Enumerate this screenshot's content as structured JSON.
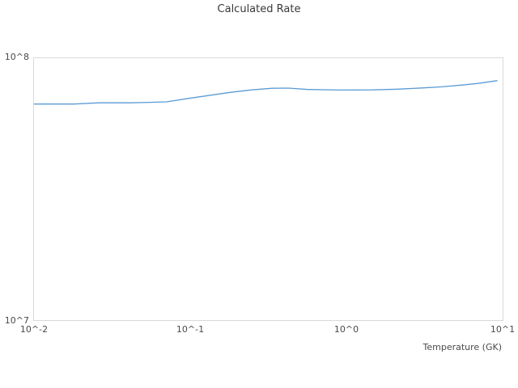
{
  "title": "Calculated Rate",
  "chart_data": {
    "type": "line",
    "title": "Calculated Rate",
    "xlabel": "Temperature (GK)",
    "ylabel": "",
    "x_scale": "log",
    "y_scale": "log",
    "xlim": [
      0.01,
      10
    ],
    "ylim": [
      10000000.0,
      100000000.0
    ],
    "x_tick_labels": [
      "10^-2",
      "10^-1",
      "10^0",
      "10^1"
    ],
    "y_tick_labels": [
      "10^7",
      "10^8"
    ],
    "grid": false,
    "legend": false,
    "line_color": "#5b9bd5",
    "series": [
      {
        "name": "calculated-rate",
        "x": [
          0.01,
          0.018,
          0.026,
          0.041,
          0.055,
          0.07,
          0.1,
          0.135,
          0.18,
          0.245,
          0.33,
          0.42,
          0.56,
          0.9,
          1.45,
          2.1,
          3.0,
          4.0,
          5.4,
          6.8,
          9.0
        ],
        "y": [
          67000000.0,
          67000000.0,
          67700000.0,
          67700000.0,
          68000000.0,
          68300000.0,
          70600000.0,
          72400000.0,
          74200000.0,
          75800000.0,
          76900000.0,
          77000000.0,
          76100000.0,
          75700000.0,
          75800000.0,
          76300000.0,
          77100000.0,
          77900000.0,
          79100000.0,
          80200000.0,
          82200000.0
        ]
      }
    ]
  }
}
